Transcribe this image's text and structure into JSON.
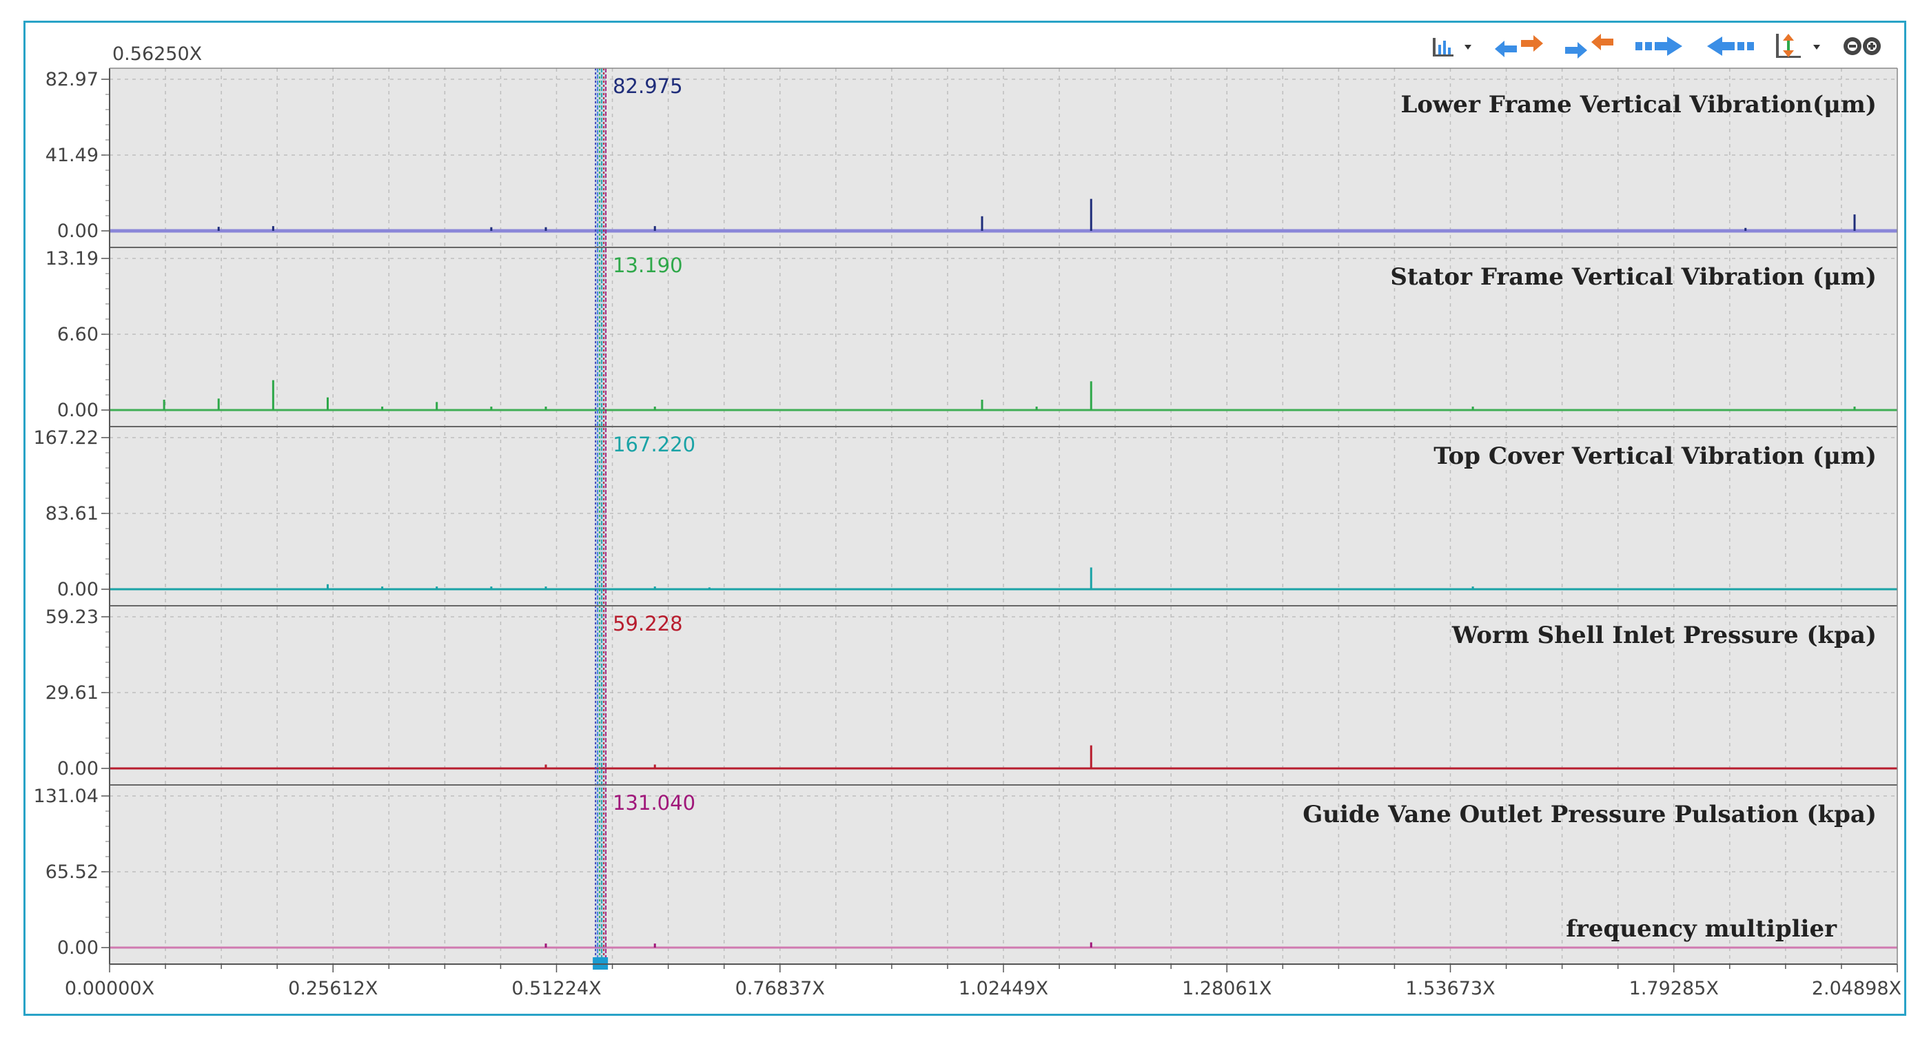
{
  "chart_data": {
    "type": "line",
    "subtype": "stacked order spectrum (5 panels, shared x axis)",
    "cursor_label": "0.56250X",
    "x_tick_labels": [
      "0.00000X",
      "0.25612X",
      "0.51224X",
      "0.76837X",
      "1.02449X",
      "1.28061X",
      "1.53673X",
      "1.79285X",
      "2.04898X"
    ],
    "xlim": [
      0,
      2.04898
    ],
    "x_axis_label": "frequency multiplier",
    "cursor_x": 0.5625,
    "grid": true,
    "panels": [
      {
        "title": "Lower Frame Vertical Vibration(μm)",
        "ymax": 82.97,
        "yticks": [
          "82.97",
          "41.49",
          "0.00"
        ],
        "cursor_value": "82.975",
        "color": "#1f2d7a",
        "baseline_color": "#8a86d8",
        "peaks": [
          [
            0.125,
            2.2
          ],
          [
            0.1875,
            2.6
          ],
          [
            0.4375,
            2.0
          ],
          [
            0.5,
            2.0
          ],
          [
            0.625,
            2.6
          ],
          [
            1.0,
            8.0
          ],
          [
            1.125,
            17.5
          ],
          [
            1.875,
            1.6
          ],
          [
            2.0,
            9.0
          ]
        ]
      },
      {
        "title": "Stator Frame Vertical Vibration (μm)",
        "ymax": 13.19,
        "yticks": [
          "13.19",
          "6.60",
          "0.00"
        ],
        "cursor_value": "13.190",
        "color": "#2fa84a",
        "baseline_color": "#3fae55",
        "peaks": [
          [
            0.0625,
            0.9
          ],
          [
            0.125,
            1.0
          ],
          [
            0.1875,
            2.6
          ],
          [
            0.25,
            1.1
          ],
          [
            0.3125,
            0.3
          ],
          [
            0.375,
            0.7
          ],
          [
            0.4375,
            0.3
          ],
          [
            0.5,
            0.3
          ],
          [
            0.625,
            0.3
          ],
          [
            1.0,
            0.9
          ],
          [
            1.0625,
            0.3
          ],
          [
            1.125,
            2.5
          ],
          [
            1.5625,
            0.3
          ],
          [
            2.0,
            0.3
          ]
        ]
      },
      {
        "title": "Top Cover Vertical Vibration (μm)",
        "ymax": 167.22,
        "yticks": [
          "167.22",
          "83.61",
          "0.00"
        ],
        "cursor_value": "167.220",
        "color": "#1aa3a6",
        "baseline_color": "#1aa3a6",
        "peaks": [
          [
            0.25,
            5.5
          ],
          [
            0.3125,
            3.0
          ],
          [
            0.375,
            3.0
          ],
          [
            0.4375,
            3.0
          ],
          [
            0.5,
            3.0
          ],
          [
            0.625,
            3.0
          ],
          [
            0.6875,
            2.0
          ],
          [
            1.125,
            24.0
          ],
          [
            1.5625,
            3.0
          ]
        ]
      },
      {
        "title": "Worm Shell Inlet Pressure (kpa)",
        "ymax": 59.23,
        "yticks": [
          "59.23",
          "29.61",
          "0.00"
        ],
        "cursor_value": "59.228",
        "color": "#b81d2e",
        "baseline_color": "#b81d2e",
        "peaks": [
          [
            0.5,
            1.5
          ],
          [
            0.625,
            1.5
          ],
          [
            1.125,
            9.0
          ]
        ]
      },
      {
        "title": "Guide Vane Outlet Pressure Pulsation (kpa)",
        "ymax": 131.04,
        "yticks": [
          "131.04",
          "65.52",
          "0.00"
        ],
        "cursor_value": "131.040",
        "color": "#a0177a",
        "baseline_color": "#d07ab0",
        "peaks": [
          [
            0.5,
            3.5
          ],
          [
            0.625,
            3.5
          ],
          [
            1.125,
            4.5
          ]
        ]
      }
    ]
  },
  "toolbar": {
    "buttons": [
      {
        "icon": "chart-options-icon",
        "has_dropdown": true
      },
      {
        "icon": "expand-horizontal-icon",
        "color": "#e8752a"
      },
      {
        "icon": "compress-horizontal-icon",
        "color": "#e8752a"
      },
      {
        "icon": "shift-right-icon",
        "color": "#3a8ee6"
      },
      {
        "icon": "shift-left-icon",
        "color": "#3a8ee6"
      },
      {
        "icon": "vertical-scale-icon",
        "has_dropdown": true
      },
      {
        "icon": "zoom-icon"
      }
    ]
  },
  "colors": {
    "frame_border": "#29a3c7",
    "plot_background": "#e6e6e6",
    "grid": "#bdbdbd",
    "cursor_band": "#3b82e0"
  }
}
